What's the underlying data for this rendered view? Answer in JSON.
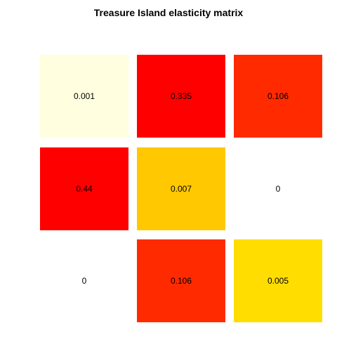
{
  "chart_data": {
    "type": "heatmap",
    "title": "Treasure Island elasticity matrix",
    "rows": 3,
    "cols": 3,
    "values": [
      [
        0.001,
        0.335,
        0.106
      ],
      [
        0.44,
        0.007,
        0
      ],
      [
        0,
        0.106,
        0.005
      ]
    ],
    "labels": [
      [
        "0.001",
        "0.335",
        "0.106"
      ],
      [
        "0.44",
        "0.007",
        "0"
      ],
      [
        "0",
        "0.106",
        "0.005"
      ]
    ],
    "colors": [
      [
        "#FFFFE0",
        "#FF0000",
        "#FF2A00"
      ],
      [
        "#FF0000",
        "#FFC800",
        "#FFFFFF"
      ],
      [
        "#FFFFFF",
        "#FF2A00",
        "#FFDD00"
      ]
    ],
    "zero_cells_blank": true,
    "grid": false,
    "legend": "none"
  }
}
